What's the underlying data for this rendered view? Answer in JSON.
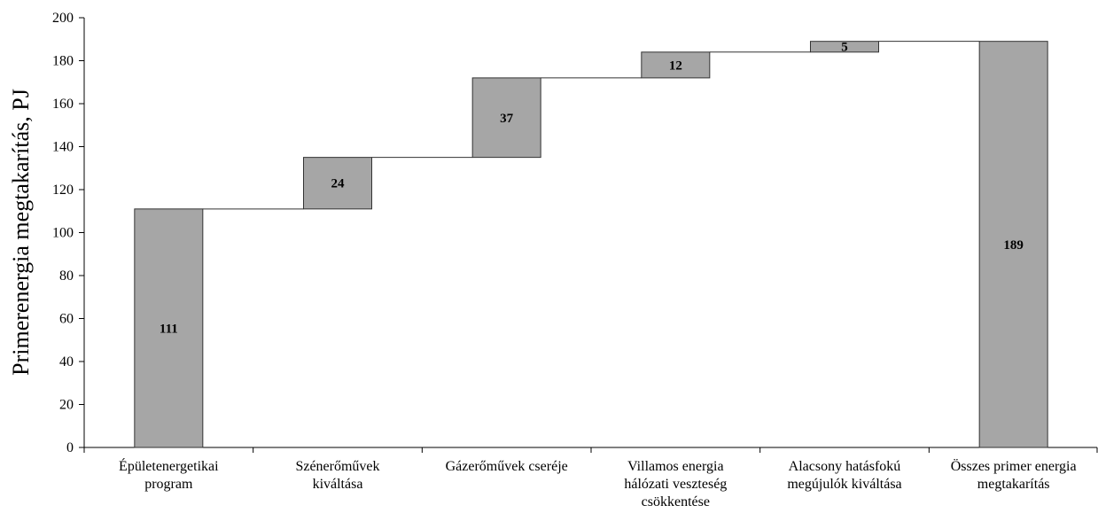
{
  "chart_data": {
    "type": "bar",
    "subtype": "waterfall",
    "title": "",
    "xlabel": "",
    "ylabel": "Primerenergia megtakarítás, PJ",
    "ylim": [
      0,
      200
    ],
    "yticks": [
      0,
      20,
      40,
      60,
      80,
      100,
      120,
      140,
      160,
      180,
      200
    ],
    "grid": false,
    "legend": "none",
    "bar_color": "#a6a6a6",
    "bar_stroke": "#333333",
    "categories": [
      [
        "Épületenergetikai",
        "program"
      ],
      [
        "Szénerőművek",
        "kiváltása"
      ],
      [
        "Gázerőművek cseréje"
      ],
      [
        "Villamos energia",
        "hálózati veszteség",
        "csökkentése"
      ],
      [
        "Alacsony hatásfokú",
        "megújulók kiváltása"
      ],
      [
        "Összes primer energia",
        "megtakarítás"
      ]
    ],
    "values": [
      111,
      24,
      37,
      12,
      5,
      189
    ],
    "is_total": [
      false,
      false,
      false,
      false,
      false,
      true
    ],
    "data_labels": [
      "111",
      "24",
      "37",
      "12",
      "5",
      "189"
    ]
  }
}
